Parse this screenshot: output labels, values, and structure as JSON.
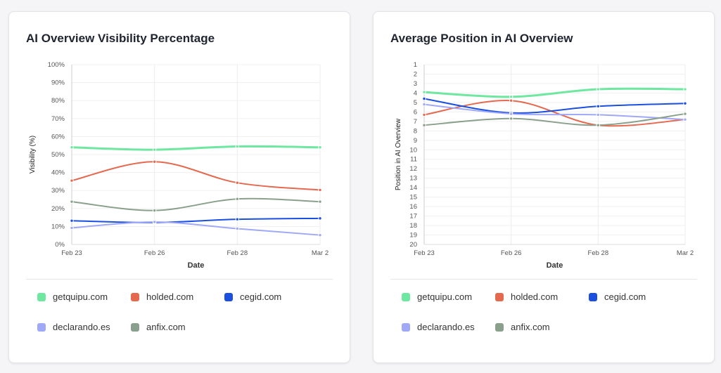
{
  "legend": [
    {
      "name": "getquipu.com",
      "color": "#6ee7a0"
    },
    {
      "name": "holded.com",
      "color": "#e5694f"
    },
    {
      "name": "cegid.com",
      "color": "#1a4fe0"
    },
    {
      "name": "declarando.es",
      "color": "#a0a8f8"
    },
    {
      "name": "anfix.com",
      "color": "#8aa08c"
    }
  ],
  "chart_data": [
    {
      "type": "line",
      "title": "AI Overview Visibility Percentage",
      "xlabel": "Date",
      "ylabel": "Visibility (%)",
      "categories": [
        "Feb 23",
        "Feb 26",
        "Feb 28",
        "Mar 2"
      ],
      "ylim": [
        0,
        100
      ],
      "yticks": [
        "0%",
        "10%",
        "20%",
        "30%",
        "40%",
        "50%",
        "60%",
        "70%",
        "80%",
        "90%",
        "100%"
      ],
      "grid": true,
      "legend": "bottom",
      "series": [
        {
          "name": "getquipu.com",
          "values": [
            54,
            52.7,
            54.5,
            54
          ]
        },
        {
          "name": "holded.com",
          "values": [
            35.5,
            46,
            34.3,
            30.3
          ]
        },
        {
          "name": "cegid.com",
          "values": [
            13.2,
            12.2,
            14,
            14.5
          ]
        },
        {
          "name": "declarando.es",
          "values": [
            9.2,
            12.5,
            8.8,
            5.2
          ]
        },
        {
          "name": "anfix.com",
          "values": [
            23.8,
            18.9,
            25.3,
            23.8
          ]
        }
      ]
    },
    {
      "type": "line",
      "title": "Average Position in AI Overview",
      "xlabel": "Date",
      "ylabel": "Position in AI Overview",
      "categories": [
        "Feb 23",
        "Feb 26",
        "Feb 28",
        "Mar 2"
      ],
      "ylim": [
        1,
        20
      ],
      "reversed": true,
      "yticks": [
        "1",
        "2",
        "3",
        "4",
        "5",
        "6",
        "7",
        "8",
        "9",
        "10",
        "11",
        "12",
        "13",
        "14",
        "15",
        "16",
        "17",
        "18",
        "19",
        "20"
      ],
      "grid": true,
      "legend": "bottom",
      "series": [
        {
          "name": "getquipu.com",
          "values": [
            3.9,
            4.4,
            3.6,
            3.6
          ]
        },
        {
          "name": "holded.com",
          "values": [
            6.3,
            4.8,
            7.4,
            6.8
          ]
        },
        {
          "name": "cegid.com",
          "values": [
            4.6,
            6.1,
            5.4,
            5.1
          ]
        },
        {
          "name": "declarando.es",
          "values": [
            5.2,
            6.2,
            6.3,
            6.8
          ]
        },
        {
          "name": "anfix.com",
          "values": [
            7.4,
            6.7,
            7.4,
            6.2
          ]
        }
      ]
    }
  ]
}
